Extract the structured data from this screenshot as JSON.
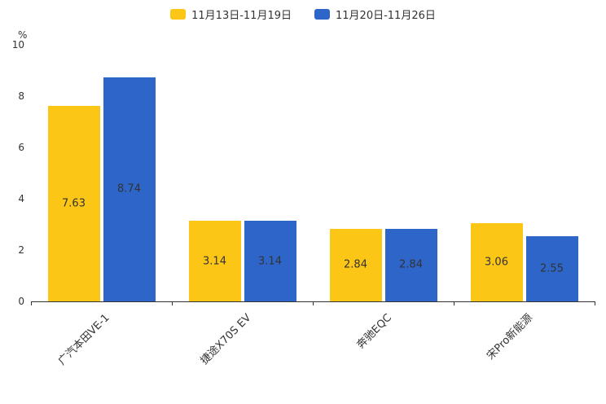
{
  "chart_data": {
    "type": "bar",
    "title": "",
    "xlabel": "",
    "ylabel": "%",
    "ylim": [
      0,
      10
    ],
    "ytick_step": 2,
    "grid": false,
    "legend_position": "top",
    "categories": [
      "广汽本田VE-1",
      "捷途X70S EV",
      "奔驰EQC",
      "宋Pro新能源"
    ],
    "series": [
      {
        "name": "11月13日-11月19日",
        "color": "#FBC616",
        "values": [
          7.63,
          3.14,
          2.84,
          3.06
        ]
      },
      {
        "name": "11月20日-11月26日",
        "color": "#2D65C8",
        "values": [
          8.74,
          3.14,
          2.84,
          2.55
        ]
      }
    ],
    "bar_label_color": "#333333",
    "axis_color": "#333333"
  }
}
